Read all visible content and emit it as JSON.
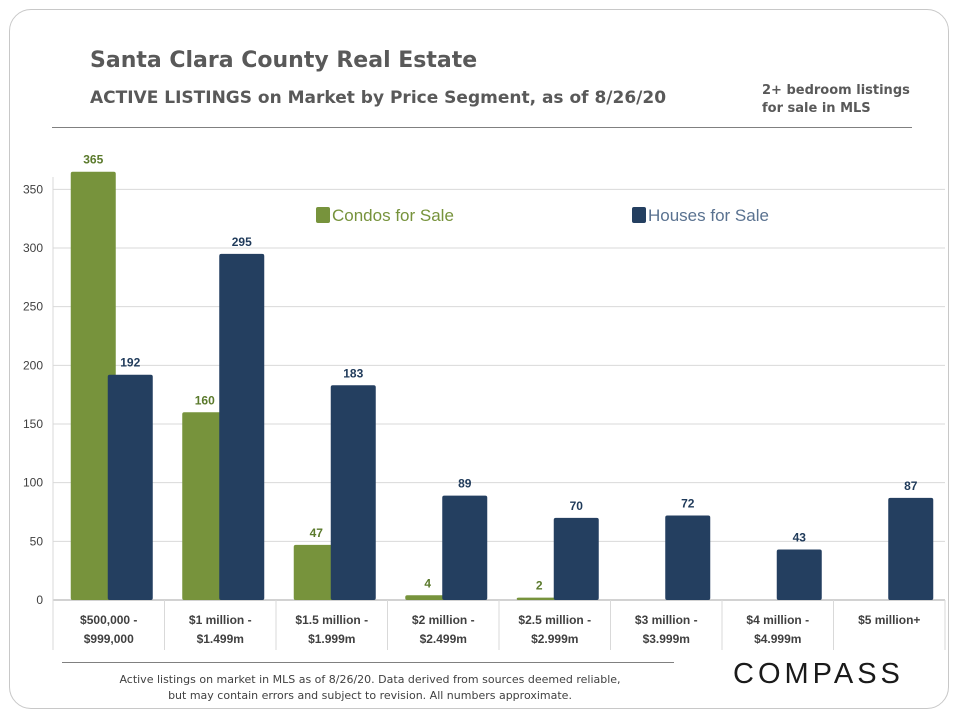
{
  "header": {
    "title": "Santa Clara County Real Estate",
    "subtitle": "ACTIVE LISTINGS on Market by Price Segment, as of 8/26/20",
    "note_line1": "2+ bedroom listings",
    "note_line2": "for sale in MLS"
  },
  "footer": {
    "line1": "Active listings on market in MLS as of 8/26/20. Data derived from sources deemed reliable,",
    "line2": "but may contain errors and subject to revision. All numbers approximate.",
    "logo": "COMPASS"
  },
  "colors": {
    "condos": "#77933c",
    "houses": "#243f60",
    "condos_label": "#5b7a2c",
    "houses_label": "#1f3a5a"
  },
  "chart_data": {
    "type": "bar",
    "title": "ACTIVE LISTINGS on Market by Price Segment, as of 8/26/20",
    "xlabel": "",
    "ylabel": "",
    "ylim": [
      0,
      350
    ],
    "yticks": [
      0,
      50,
      100,
      150,
      200,
      250,
      300,
      350
    ],
    "grid": true,
    "legend_position": "top",
    "categories": [
      [
        "$500,000 -",
        "$999,000"
      ],
      [
        "$1 million -",
        "$1.499m"
      ],
      [
        "$1.5 million -",
        "$1.999m"
      ],
      [
        "$2 million -",
        "$2.499m"
      ],
      [
        "$2.5 million -",
        "$2.999m"
      ],
      [
        "$3 million -",
        "$3.999m"
      ],
      [
        "$4 million -",
        "$4.999m"
      ],
      [
        "$5 million+"
      ]
    ],
    "series": [
      {
        "name": "Condos for Sale",
        "values": [
          365,
          160,
          47,
          4,
          2,
          null,
          null,
          null
        ]
      },
      {
        "name": "Houses for Sale",
        "values": [
          192,
          295,
          183,
          89,
          70,
          72,
          43,
          87
        ]
      }
    ]
  }
}
